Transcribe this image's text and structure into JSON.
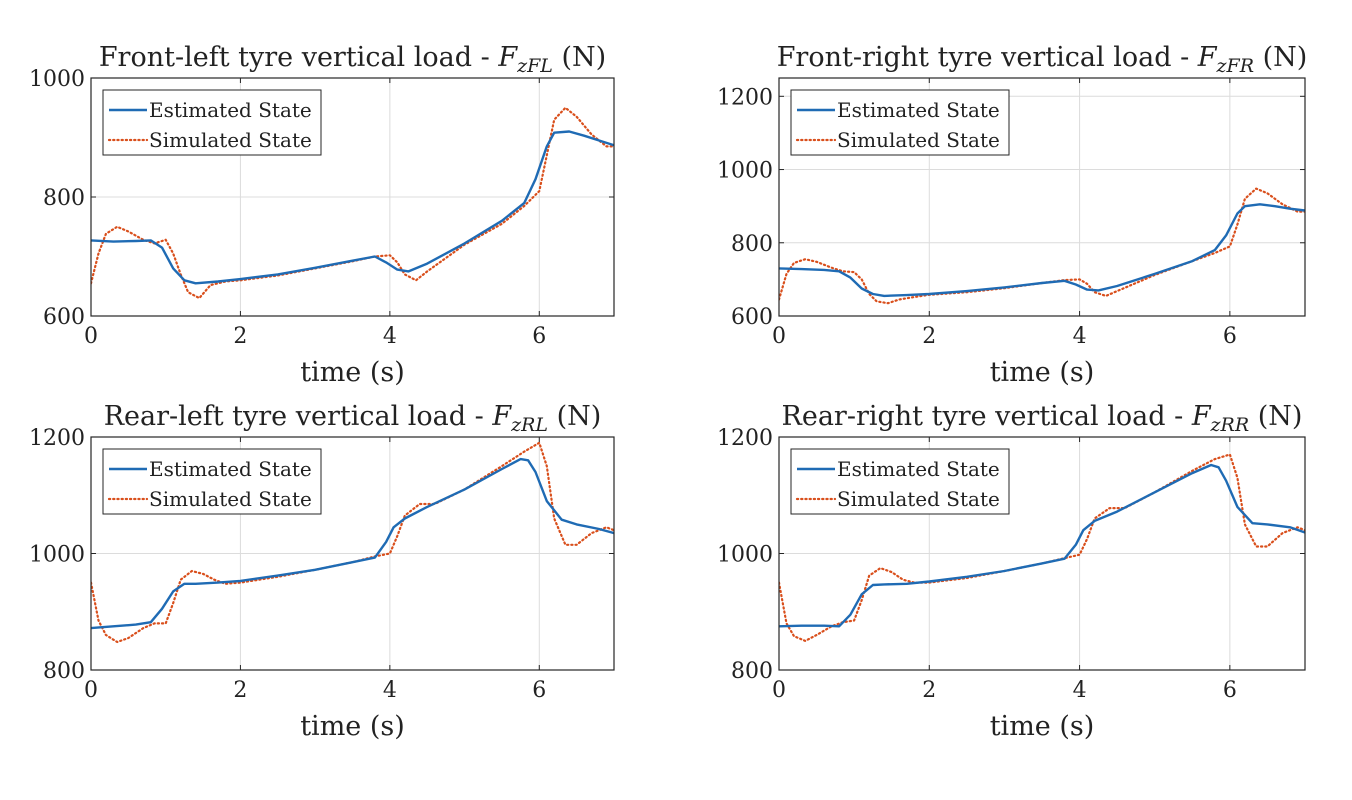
{
  "chart_data": [
    {
      "type": "line",
      "title_main": "Front-left tyre vertical load - ",
      "title_sym": "F",
      "title_sub": "zFL",
      "title_unit": " (N)",
      "xlabel": "time (s)",
      "xlim": [
        0,
        7
      ],
      "ylim": [
        600,
        1000
      ],
      "xticks": [
        0,
        2,
        4,
        6
      ],
      "yticks": [
        600,
        800,
        1000
      ],
      "grid": true,
      "legend_position": "top-left",
      "series": [
        {
          "name": "Estimated State",
          "color": "#1f6bb4",
          "style": "solid",
          "x": [
            0,
            0.3,
            0.6,
            0.8,
            0.95,
            1.1,
            1.25,
            1.4,
            1.7,
            2.0,
            2.5,
            3.0,
            3.5,
            3.8,
            3.95,
            4.1,
            4.25,
            4.5,
            5.0,
            5.5,
            5.8,
            5.95,
            6.1,
            6.2,
            6.4,
            6.6,
            6.8,
            7.0
          ],
          "y": [
            727,
            725,
            726,
            727,
            715,
            680,
            660,
            655,
            658,
            662,
            670,
            681,
            693,
            700,
            690,
            678,
            675,
            688,
            722,
            760,
            790,
            830,
            885,
            908,
            910,
            903,
            895,
            887
          ]
        },
        {
          "name": "Simulated State",
          "color": "#d94f1c",
          "style": "dotted",
          "x": [
            0,
            0.1,
            0.2,
            0.35,
            0.5,
            0.7,
            0.85,
            1.0,
            1.1,
            1.2,
            1.3,
            1.45,
            1.6,
            1.8,
            2.0,
            2.5,
            3.0,
            3.5,
            3.8,
            4.0,
            4.1,
            4.2,
            4.35,
            4.5,
            5.0,
            5.5,
            5.8,
            6.0,
            6.1,
            6.2,
            6.35,
            6.5,
            6.7,
            6.9,
            7.0
          ],
          "y": [
            655,
            705,
            738,
            750,
            742,
            728,
            722,
            728,
            705,
            670,
            640,
            630,
            652,
            658,
            660,
            668,
            680,
            692,
            700,
            702,
            690,
            670,
            660,
            675,
            720,
            755,
            785,
            810,
            870,
            930,
            950,
            935,
            905,
            885,
            885
          ]
        }
      ]
    },
    {
      "type": "line",
      "title_main": "Front-right tyre vertical load - ",
      "title_sym": "F",
      "title_sub": "zFR",
      "title_unit": " (N)",
      "xlabel": "time (s)",
      "xlim": [
        0,
        7
      ],
      "ylim": [
        600,
        1250
      ],
      "xticks": [
        0,
        2,
        4,
        6
      ],
      "yticks": [
        600,
        800,
        1000,
        1200
      ],
      "grid": true,
      "legend_position": "top-left",
      "series": [
        {
          "name": "Estimated State",
          "color": "#1f6bb4",
          "style": "solid",
          "x": [
            0,
            0.3,
            0.6,
            0.8,
            0.95,
            1.1,
            1.25,
            1.4,
            1.7,
            2.0,
            2.5,
            3.0,
            3.5,
            3.8,
            3.95,
            4.1,
            4.25,
            4.5,
            5.0,
            5.5,
            5.8,
            5.95,
            6.1,
            6.2,
            6.4,
            6.6,
            6.8,
            7.0
          ],
          "y": [
            730,
            728,
            726,
            722,
            705,
            675,
            660,
            655,
            657,
            660,
            668,
            678,
            690,
            696,
            686,
            672,
            670,
            682,
            715,
            750,
            780,
            820,
            880,
            900,
            905,
            900,
            893,
            888
          ]
        },
        {
          "name": "Simulated State",
          "color": "#d94f1c",
          "style": "dotted",
          "x": [
            0,
            0.1,
            0.2,
            0.35,
            0.5,
            0.7,
            0.85,
            1.0,
            1.1,
            1.2,
            1.3,
            1.45,
            1.6,
            1.8,
            2.0,
            2.5,
            3.0,
            3.5,
            3.8,
            4.0,
            4.1,
            4.2,
            4.35,
            4.5,
            5.0,
            5.5,
            5.8,
            6.0,
            6.1,
            6.2,
            6.35,
            6.5,
            6.7,
            6.9,
            7.0
          ],
          "y": [
            645,
            715,
            745,
            755,
            748,
            732,
            722,
            720,
            700,
            660,
            640,
            635,
            645,
            652,
            658,
            665,
            676,
            690,
            698,
            700,
            688,
            665,
            655,
            668,
            712,
            750,
            772,
            790,
            850,
            920,
            948,
            935,
            905,
            885,
            885
          ]
        }
      ]
    },
    {
      "type": "line",
      "title_main": "Rear-left tyre vertical load - ",
      "title_sym": "F",
      "title_sub": "zRL",
      "title_unit": " (N)",
      "xlabel": "time (s)",
      "xlim": [
        0,
        7
      ],
      "ylim": [
        800,
        1200
      ],
      "xticks": [
        0,
        2,
        4,
        6
      ],
      "yticks": [
        800,
        1000,
        1200
      ],
      "grid": true,
      "legend_position": "top-left",
      "series": [
        {
          "name": "Estimated State",
          "color": "#1f6bb4",
          "style": "solid",
          "x": [
            0,
            0.3,
            0.6,
            0.8,
            0.95,
            1.1,
            1.25,
            1.4,
            1.7,
            2.0,
            2.5,
            3.0,
            3.5,
            3.8,
            3.95,
            4.05,
            4.2,
            4.5,
            5.0,
            5.5,
            5.75,
            5.85,
            5.95,
            6.1,
            6.3,
            6.5,
            6.8,
            7.0
          ],
          "y": [
            872,
            875,
            878,
            882,
            905,
            935,
            948,
            948,
            950,
            953,
            962,
            972,
            985,
            993,
            1020,
            1045,
            1060,
            1080,
            1110,
            1145,
            1162,
            1160,
            1140,
            1090,
            1058,
            1050,
            1042,
            1035
          ]
        },
        {
          "name": "Simulated State",
          "color": "#d94f1c",
          "style": "dotted",
          "x": [
            0,
            0.1,
            0.2,
            0.35,
            0.5,
            0.7,
            0.85,
            1.0,
            1.1,
            1.2,
            1.35,
            1.5,
            1.65,
            1.8,
            2.0,
            2.5,
            3.0,
            3.5,
            3.8,
            4.0,
            4.1,
            4.2,
            4.4,
            4.6,
            5.0,
            5.5,
            5.8,
            6.0,
            6.1,
            6.2,
            6.35,
            6.5,
            6.7,
            6.9,
            7.0
          ],
          "y": [
            950,
            885,
            860,
            848,
            855,
            872,
            880,
            880,
            915,
            955,
            970,
            965,
            955,
            948,
            950,
            960,
            972,
            985,
            995,
            1000,
            1030,
            1065,
            1085,
            1085,
            1110,
            1150,
            1175,
            1190,
            1150,
            1060,
            1015,
            1015,
            1035,
            1045,
            1040
          ]
        }
      ]
    },
    {
      "type": "line",
      "title_main": "Rear-right tyre vertical load - ",
      "title_sym": "F",
      "title_sub": "zRR",
      "title_unit": " (N)",
      "xlabel": "time (s)",
      "xlim": [
        0,
        7
      ],
      "ylim": [
        800,
        1200
      ],
      "xticks": [
        0,
        2,
        4,
        6
      ],
      "yticks": [
        800,
        1000,
        1200
      ],
      "grid": true,
      "legend_position": "top-left",
      "series": [
        {
          "name": "Estimated State",
          "color": "#1f6bb4",
          "style": "solid",
          "x": [
            0,
            0.3,
            0.6,
            0.8,
            0.95,
            1.1,
            1.25,
            1.4,
            1.7,
            2.0,
            2.5,
            3.0,
            3.5,
            3.8,
            3.95,
            4.05,
            4.2,
            4.5,
            5.0,
            5.5,
            5.75,
            5.85,
            5.95,
            6.1,
            6.3,
            6.5,
            6.8,
            7.0
          ],
          "y": [
            875,
            876,
            876,
            875,
            895,
            930,
            946,
            947,
            948,
            952,
            960,
            970,
            983,
            991,
            1015,
            1040,
            1056,
            1072,
            1105,
            1138,
            1152,
            1148,
            1125,
            1080,
            1052,
            1050,
            1045,
            1036
          ]
        },
        {
          "name": "Simulated State",
          "color": "#d94f1c",
          "style": "dotted",
          "x": [
            0,
            0.1,
            0.2,
            0.35,
            0.5,
            0.7,
            0.85,
            1.0,
            1.1,
            1.2,
            1.35,
            1.5,
            1.65,
            1.8,
            2.0,
            2.5,
            3.0,
            3.5,
            3.8,
            4.0,
            4.1,
            4.2,
            4.4,
            4.6,
            5.0,
            5.5,
            5.8,
            6.0,
            6.1,
            6.2,
            6.35,
            6.5,
            6.7,
            6.9,
            7.0
          ],
          "y": [
            950,
            880,
            858,
            850,
            860,
            875,
            882,
            885,
            920,
            962,
            975,
            968,
            955,
            950,
            950,
            958,
            970,
            983,
            992,
            998,
            1025,
            1060,
            1078,
            1078,
            1105,
            1142,
            1162,
            1170,
            1130,
            1050,
            1012,
            1012,
            1035,
            1045,
            1040
          ]
        }
      ]
    }
  ]
}
